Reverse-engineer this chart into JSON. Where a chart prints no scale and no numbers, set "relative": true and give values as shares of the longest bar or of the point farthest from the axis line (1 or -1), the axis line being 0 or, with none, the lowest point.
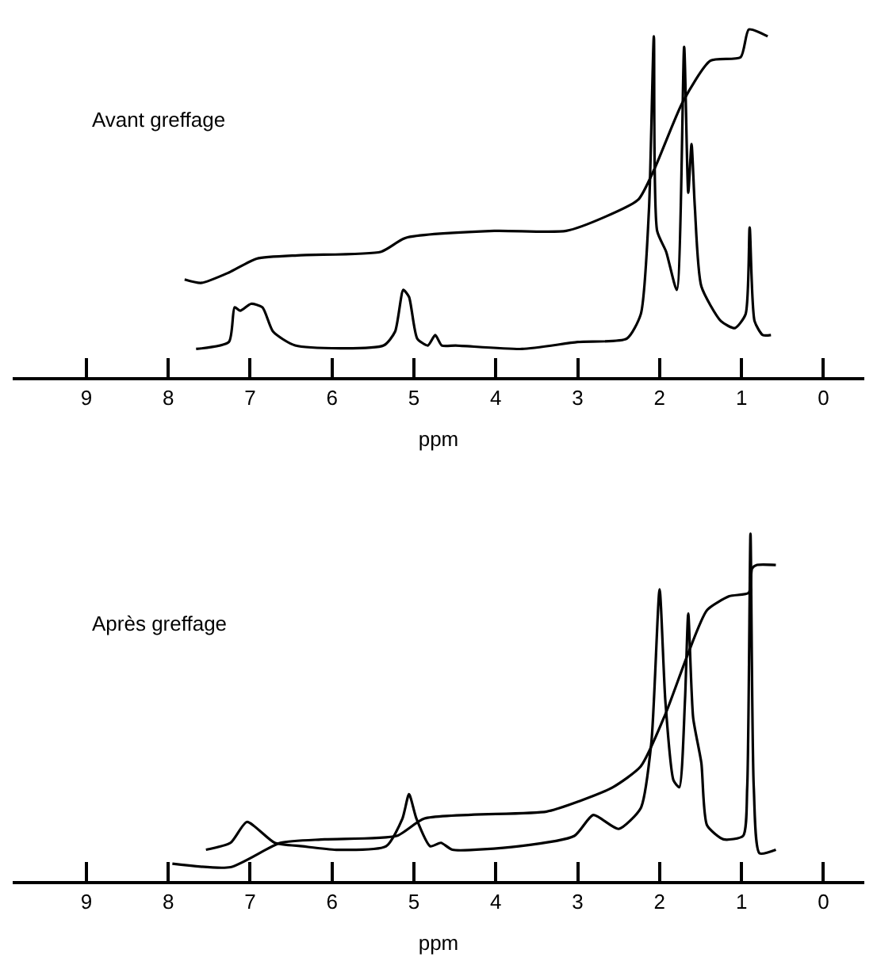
{
  "chart_data": [
    {
      "type": "line",
      "title": "Avant greffage",
      "xlabel": "ppm",
      "relative": true,
      "xlim": [
        9.9,
        -0.5
      ],
      "xticks": [
        9,
        8,
        7,
        6,
        5,
        4,
        3,
        2,
        1,
        0
      ],
      "line_style": "solid",
      "series": [
        {
          "color": "#000000",
          "x": [
            7.66,
            7.26,
            7.19,
            7.12,
            6.99,
            6.85,
            6.72,
            6.45,
            5.37,
            5.23,
            5.13,
            5.06,
            4.96,
            4.83,
            4.74,
            4.66,
            4.49,
            3.68,
            3.0,
            2.4,
            2.23,
            2.13,
            2.07,
            2.03,
            1.92,
            1.79,
            1.7,
            1.65,
            1.61,
            1.57,
            1.49,
            1.25,
            1.08,
            0.95,
            0.9,
            0.84,
            0.74,
            0.64
          ],
          "values": [
            0.08,
            0.1,
            0.2,
            0.19,
            0.21,
            0.2,
            0.13,
            0.09,
            0.09,
            0.13,
            0.25,
            0.23,
            0.11,
            0.09,
            0.12,
            0.09,
            0.09,
            0.08,
            0.1,
            0.11,
            0.18,
            0.48,
            0.98,
            0.42,
            0.36,
            0.25,
            0.95,
            0.53,
            0.67,
            0.49,
            0.26,
            0.16,
            0.14,
            0.18,
            0.43,
            0.16,
            0.12,
            0.12
          ]
        },
        {
          "color": "#000000",
          "x": [
            7.8,
            7.6,
            7.26,
            6.92,
            6.38,
            5.4,
            5.1,
            4.02,
            3.14,
            2.67,
            2.26,
            2.06,
            1.72,
            1.38,
            1.01,
            0.91,
            0.68
          ],
          "values": [
            0.28,
            0.27,
            0.3,
            0.34,
            0.35,
            0.36,
            0.4,
            0.42,
            0.42,
            0.46,
            0.51,
            0.6,
            0.79,
            0.91,
            0.92,
            1.0,
            0.98
          ]
        }
      ]
    },
    {
      "type": "line",
      "title": "Après greffage",
      "xlabel": "ppm",
      "relative": true,
      "xlim": [
        9.9,
        -0.5
      ],
      "xticks": [
        9,
        8,
        7,
        6,
        5,
        4,
        3,
        2,
        1,
        0
      ],
      "line_style": "solid",
      "series": [
        {
          "color": "#000000",
          "x": [
            7.54,
            7.24,
            7.04,
            6.7,
            6.36,
            5.95,
            5.34,
            5.14,
            5.06,
            4.97,
            4.8,
            4.67,
            4.53,
            3.72,
            3.04,
            2.81,
            2.5,
            2.23,
            2.1,
            2.0,
            1.93,
            1.83,
            1.76,
            1.69,
            1.65,
            1.59,
            1.49,
            1.42,
            1.22,
            0.98,
            0.93,
            0.89,
            0.85,
            0.78,
            0.58
          ],
          "values": [
            0.09,
            0.11,
            0.17,
            0.11,
            0.1,
            0.09,
            0.1,
            0.18,
            0.25,
            0.18,
            0.1,
            0.11,
            0.09,
            0.1,
            0.13,
            0.19,
            0.15,
            0.21,
            0.4,
            0.84,
            0.52,
            0.29,
            0.27,
            0.52,
            0.77,
            0.47,
            0.34,
            0.16,
            0.12,
            0.13,
            0.27,
            1.0,
            0.27,
            0.08,
            0.09
          ]
        },
        {
          "color": "#000000",
          "x": [
            7.95,
            7.24,
            6.63,
            6.09,
            5.21,
            4.87,
            3.38,
            2.98,
            2.57,
            2.23,
            1.93,
            1.66,
            1.42,
            1.15,
            0.91,
            0.87,
            0.81,
            0.58
          ],
          "values": [
            0.05,
            0.04,
            0.11,
            0.12,
            0.13,
            0.18,
            0.2,
            0.23,
            0.27,
            0.33,
            0.48,
            0.65,
            0.78,
            0.82,
            0.83,
            0.9,
            0.91,
            0.91
          ]
        }
      ]
    }
  ]
}
